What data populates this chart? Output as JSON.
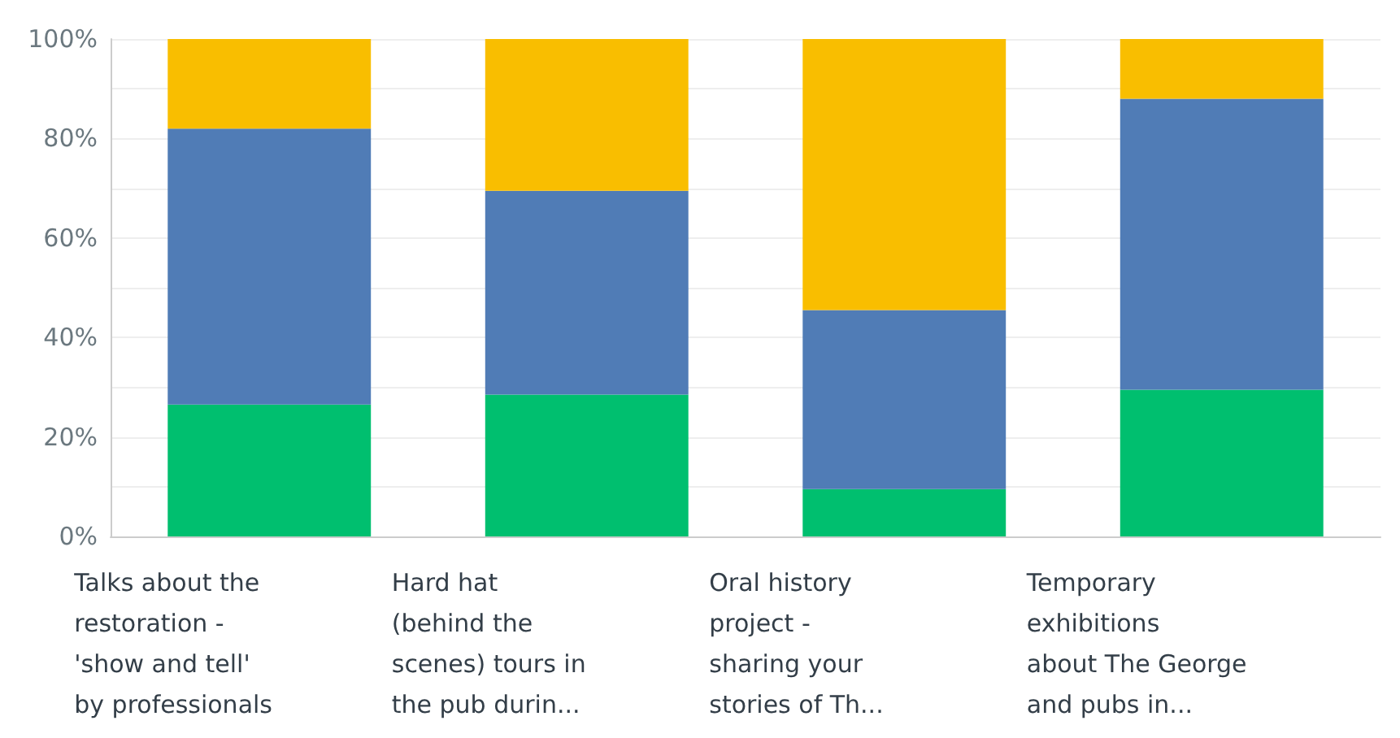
{
  "chart_data": {
    "type": "bar",
    "stacked": true,
    "grid": "y",
    "categories": [
      "Talks about the\nrestoration -\n'show and tell'\nby professionals",
      "Hard hat\n(behind the\nscenes) tours in\nthe pub durin...",
      "Oral history\nproject -\nsharing your\nstories of Th...",
      "Temporary\nexhibitions\nabout The George\nand pubs in..."
    ],
    "series": [
      {
        "color": "#00bf6f",
        "values": [
          26.5,
          28.5,
          9.5,
          29.5
        ]
      },
      {
        "color": "#507cb6",
        "values": [
          55.5,
          41,
          36,
          58.5
        ]
      },
      {
        "color": "#f9be00",
        "values": [
          18,
          30.5,
          54.5,
          12
        ]
      }
    ],
    "ylim": [
      0,
      100
    ],
    "yticks": [
      {
        "value": 0,
        "label": "0%"
      },
      {
        "value": 10,
        "label": null
      },
      {
        "value": 20,
        "label": "20%"
      },
      {
        "value": 30,
        "label": null
      },
      {
        "value": 40,
        "label": "40%"
      },
      {
        "value": 50,
        "label": null
      },
      {
        "value": 60,
        "label": "60%"
      },
      {
        "value": 70,
        "label": null
      },
      {
        "value": 80,
        "label": "80%"
      },
      {
        "value": 90,
        "label": null
      },
      {
        "value": 100,
        "label": "100%"
      }
    ]
  }
}
